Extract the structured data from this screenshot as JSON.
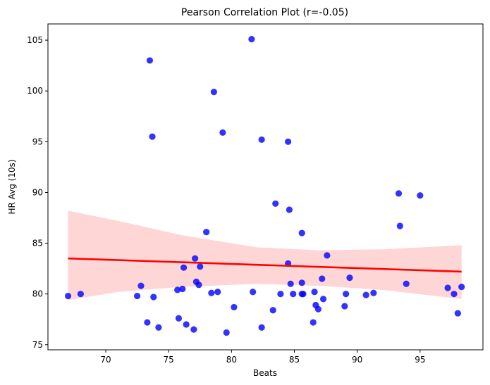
{
  "chart_data": {
    "type": "scatter",
    "title": "Pearson Correlation Plot (r=-0.05)",
    "xlabel": "Beats",
    "ylabel": "HR Avg (10s)",
    "xlim": [
      65.4,
      100.0
    ],
    "ylim": [
      74.5,
      106.6
    ],
    "xticks": [
      70,
      75,
      80,
      85,
      90,
      95
    ],
    "yticks": [
      75,
      80,
      85,
      90,
      95,
      100,
      105
    ],
    "grid": false,
    "point_color": "#0000ff",
    "regression_color": "#ff0000",
    "ci_color": "#ffc0c0",
    "points": [
      {
        "x": 67.0,
        "y": 79.8
      },
      {
        "x": 68.0,
        "y": 80.0
      },
      {
        "x": 72.5,
        "y": 79.8
      },
      {
        "x": 72.8,
        "y": 80.8
      },
      {
        "x": 73.3,
        "y": 77.2
      },
      {
        "x": 73.5,
        "y": 103.0
      },
      {
        "x": 73.7,
        "y": 95.5
      },
      {
        "x": 73.8,
        "y": 79.7
      },
      {
        "x": 74.2,
        "y": 76.7
      },
      {
        "x": 75.7,
        "y": 80.4
      },
      {
        "x": 75.8,
        "y": 77.6
      },
      {
        "x": 76.1,
        "y": 80.5
      },
      {
        "x": 76.2,
        "y": 82.6
      },
      {
        "x": 76.4,
        "y": 77.0
      },
      {
        "x": 77.0,
        "y": 76.5
      },
      {
        "x": 77.1,
        "y": 83.5
      },
      {
        "x": 77.2,
        "y": 81.2
      },
      {
        "x": 77.4,
        "y": 80.9
      },
      {
        "x": 77.5,
        "y": 82.7
      },
      {
        "x": 78.0,
        "y": 86.1
      },
      {
        "x": 78.4,
        "y": 80.1
      },
      {
        "x": 78.6,
        "y": 99.9
      },
      {
        "x": 78.9,
        "y": 80.2
      },
      {
        "x": 79.3,
        "y": 95.9
      },
      {
        "x": 79.6,
        "y": 76.2
      },
      {
        "x": 80.2,
        "y": 78.7
      },
      {
        "x": 81.6,
        "y": 105.1
      },
      {
        "x": 81.7,
        "y": 80.2
      },
      {
        "x": 82.4,
        "y": 95.2
      },
      {
        "x": 82.4,
        "y": 76.7
      },
      {
        "x": 83.3,
        "y": 78.4
      },
      {
        "x": 83.5,
        "y": 88.9
      },
      {
        "x": 83.9,
        "y": 80.0
      },
      {
        "x": 84.5,
        "y": 95.0
      },
      {
        "x": 84.5,
        "y": 83.0
      },
      {
        "x": 84.6,
        "y": 88.3
      },
      {
        "x": 84.7,
        "y": 81.0
      },
      {
        "x": 84.9,
        "y": 80.0
      },
      {
        "x": 85.6,
        "y": 86.0
      },
      {
        "x": 85.6,
        "y": 81.1
      },
      {
        "x": 85.6,
        "y": 80.0
      },
      {
        "x": 85.7,
        "y": 80.0
      },
      {
        "x": 86.5,
        "y": 77.2
      },
      {
        "x": 86.6,
        "y": 80.2
      },
      {
        "x": 86.7,
        "y": 78.9
      },
      {
        "x": 86.9,
        "y": 78.5
      },
      {
        "x": 87.2,
        "y": 81.5
      },
      {
        "x": 87.3,
        "y": 79.5
      },
      {
        "x": 87.6,
        "y": 83.8
      },
      {
        "x": 89.0,
        "y": 78.8
      },
      {
        "x": 89.1,
        "y": 80.0
      },
      {
        "x": 89.4,
        "y": 81.6
      },
      {
        "x": 90.7,
        "y": 79.9
      },
      {
        "x": 91.3,
        "y": 80.1
      },
      {
        "x": 93.3,
        "y": 89.9
      },
      {
        "x": 93.4,
        "y": 86.7
      },
      {
        "x": 93.9,
        "y": 81.0
      },
      {
        "x": 95.0,
        "y": 89.7
      },
      {
        "x": 97.2,
        "y": 80.6
      },
      {
        "x": 97.7,
        "y": 80.0
      },
      {
        "x": 98.0,
        "y": 78.1
      },
      {
        "x": 98.3,
        "y": 80.7
      }
    ],
    "regression": {
      "x": [
        67.0,
        98.3
      ],
      "y": [
        83.5,
        82.2
      ]
    },
    "confidence_band": {
      "x": [
        67.0,
        71.0,
        76.0,
        82.0,
        87.0,
        92.0,
        98.3
      ],
      "upper": [
        88.2,
        87.2,
        85.8,
        84.6,
        84.3,
        84.4,
        84.8
      ],
      "lower": [
        79.4,
        80.2,
        80.7,
        81.0,
        80.8,
        80.4,
        79.5
      ]
    }
  }
}
